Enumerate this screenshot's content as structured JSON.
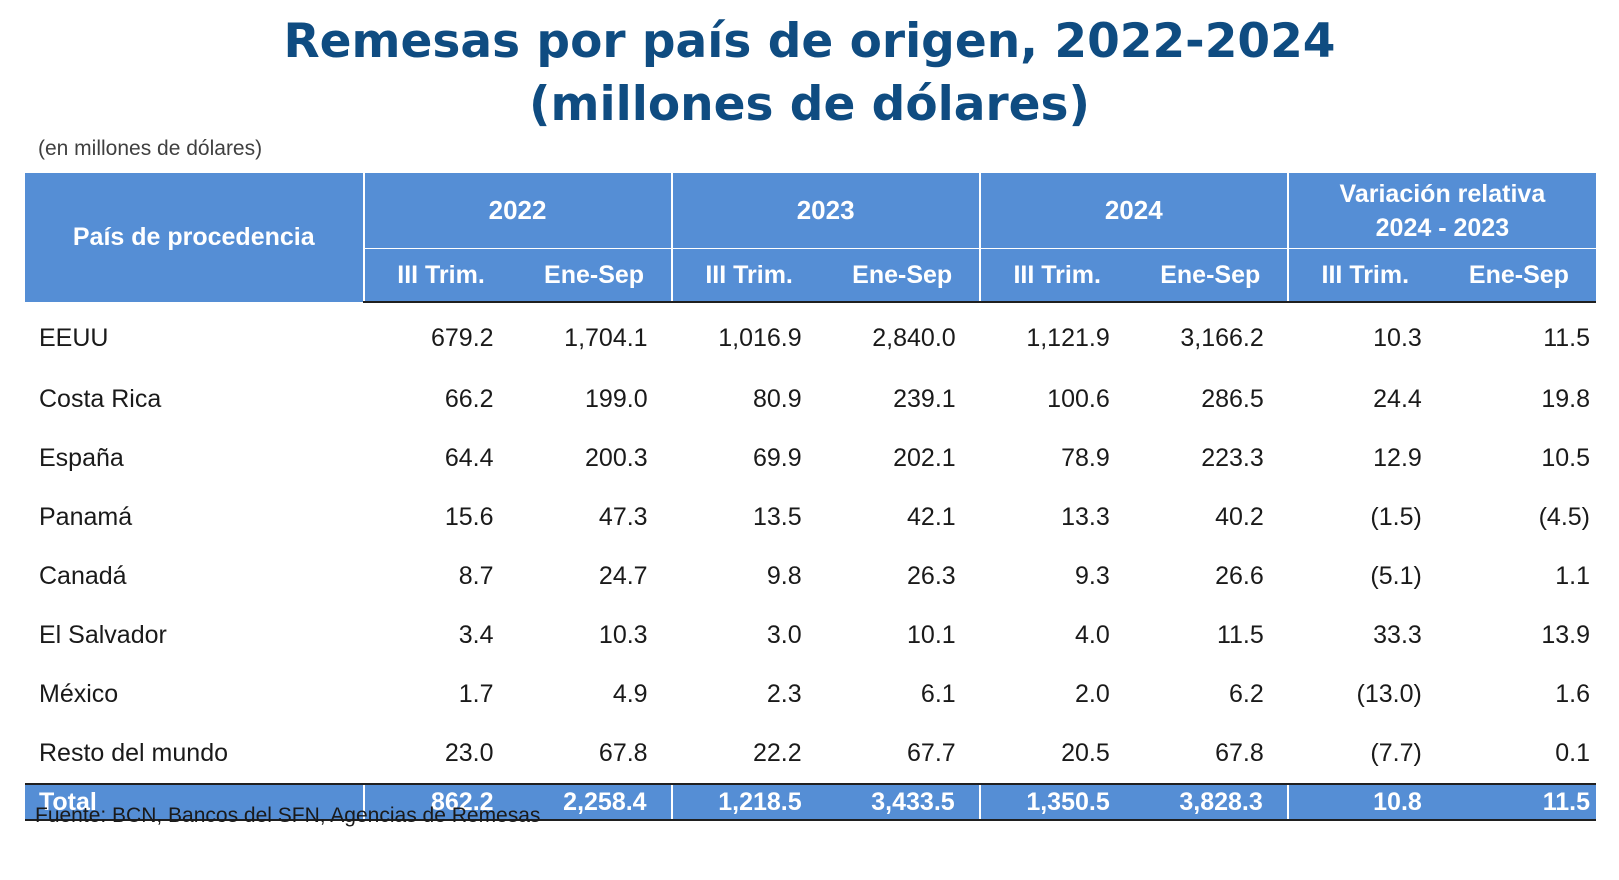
{
  "title": {
    "line1": "Remesas por país de origen, 2022-2024",
    "line2": "(millones de dólares)"
  },
  "unit_note": "(en millones de dólares)",
  "table": {
    "country_header": "País de procedencia",
    "groups": [
      "2022",
      "2023",
      "2024"
    ],
    "variation_header": {
      "line1": "Variación relativa",
      "line2": "2024 - 2023"
    },
    "subheaders": [
      "III Trim.",
      "Ene-Sep",
      "III Trim.",
      "Ene-Sep",
      "III Trim.",
      "Ene-Sep",
      "III Trim.",
      "Ene-Sep"
    ],
    "rows": [
      {
        "country": "EEUU",
        "values": [
          "679.2",
          "1,704.1",
          "1,016.9",
          "2,840.0",
          "1,121.9",
          "3,166.2",
          "10.3",
          "11.5"
        ]
      },
      {
        "country": "Costa Rica",
        "values": [
          "66.2",
          "199.0",
          "80.9",
          "239.1",
          "100.6",
          "286.5",
          "24.4",
          "19.8"
        ]
      },
      {
        "country": "España",
        "values": [
          "64.4",
          "200.3",
          "69.9",
          "202.1",
          "78.9",
          "223.3",
          "12.9",
          "10.5"
        ]
      },
      {
        "country": "Panamá",
        "values": [
          "15.6",
          "47.3",
          "13.5",
          "42.1",
          "13.3",
          "40.2",
          "(1.5)",
          "(4.5)"
        ]
      },
      {
        "country": "Canadá",
        "values": [
          "8.7",
          "24.7",
          "9.8",
          "26.3",
          "9.3",
          "26.6",
          "(5.1)",
          "1.1"
        ]
      },
      {
        "country": "El Salvador",
        "values": [
          "3.4",
          "10.3",
          "3.0",
          "10.1",
          "4.0",
          "11.5",
          "33.3",
          "13.9"
        ]
      },
      {
        "country": "México",
        "values": [
          "1.7",
          "4.9",
          "2.3",
          "6.1",
          "2.0",
          "6.2",
          "(13.0)",
          "1.6"
        ]
      },
      {
        "country": "Resto del mundo",
        "values": [
          "23.0",
          "67.8",
          "22.2",
          "67.7",
          "20.5",
          "67.8",
          "(7.7)",
          "0.1"
        ]
      }
    ],
    "total": {
      "label": "Total",
      "values": [
        "862.2",
        "2,258.4",
        "1,218.5",
        "3,433.5",
        "1,350.5",
        "3,828.3",
        "10.8",
        "11.5"
      ]
    }
  },
  "source": "Fuente: BCN, Bancos del SFN, Agencias de Remesas",
  "colors": {
    "title": "#0f4c81",
    "header_bg": "#558ed5",
    "header_text": "#ffffff"
  }
}
